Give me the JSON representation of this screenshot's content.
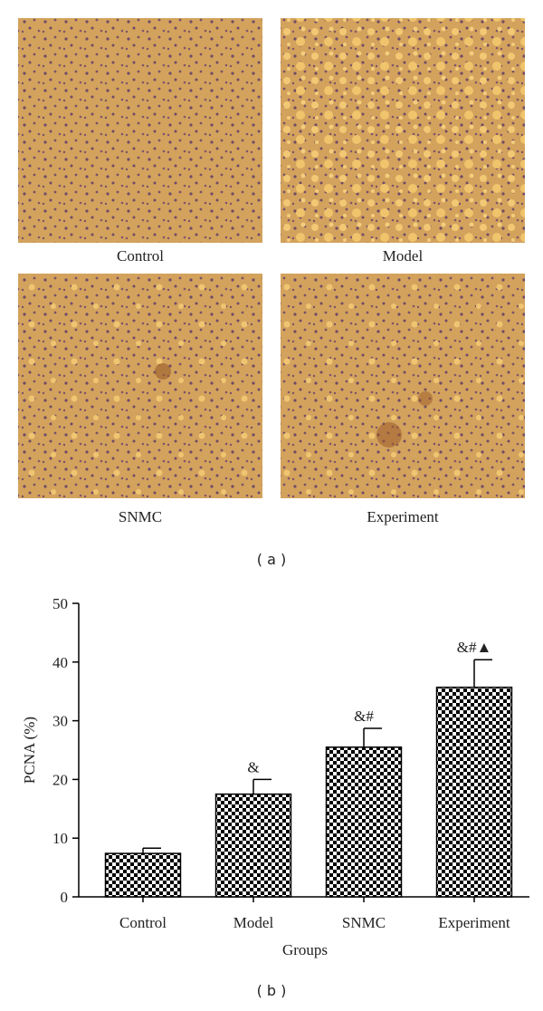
{
  "panel_a": {
    "images": [
      {
        "label": "Control"
      },
      {
        "label": "Model"
      },
      {
        "label": "SNMC"
      },
      {
        "label": "Experiment"
      }
    ],
    "caption": "( a )"
  },
  "chart_data": {
    "type": "bar",
    "caption": "( b )",
    "xlabel": "Groups",
    "ylabel": "PCNA (%)",
    "categories": [
      "Control",
      "Model",
      "SNMC",
      "Experiment"
    ],
    "values": [
      7.4,
      17.5,
      25.5,
      35.7
    ],
    "errors": [
      0.9,
      2.5,
      3.2,
      4.7
    ],
    "annotations": [
      null,
      "&",
      "&#",
      "&#▲"
    ],
    "color": "#000000",
    "ylim": [
      0,
      50
    ],
    "yticks": [
      0,
      10,
      20,
      30,
      40,
      50
    ],
    "grid": false
  }
}
